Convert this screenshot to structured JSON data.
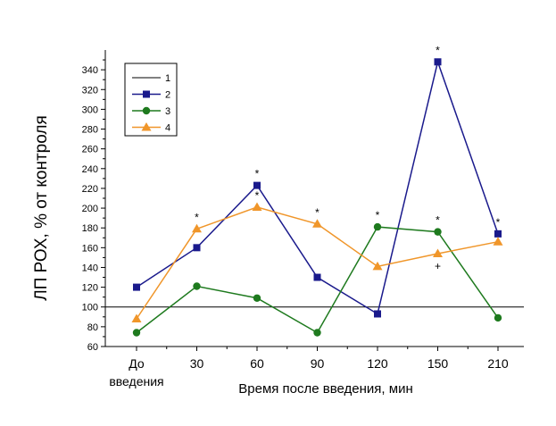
{
  "chart_data": {
    "type": "line",
    "ylabel": "ЛП РОХ, % от контроля",
    "xlabel": "Время после введения, мин",
    "categories": [
      "До\nвведения",
      "30",
      "60",
      "90",
      "120",
      "150",
      "210"
    ],
    "ylim": [
      60,
      360
    ],
    "yticks": [
      60,
      80,
      100,
      120,
      140,
      160,
      180,
      200,
      220,
      240,
      260,
      280,
      300,
      320,
      340
    ],
    "grid": false,
    "legend_position": "top-left",
    "reference_line": {
      "name": "1",
      "value": 100,
      "color": "#000000"
    },
    "series": [
      {
        "name": "2",
        "color": "#1a1a8c",
        "marker": "square",
        "values": [
          120,
          160,
          223,
          130,
          93,
          348,
          174
        ]
      },
      {
        "name": "3",
        "color": "#1e7a1e",
        "marker": "circle",
        "values": [
          74,
          121,
          109,
          74,
          181,
          176,
          89
        ]
      },
      {
        "name": "4",
        "color": "#f0962a",
        "marker": "triangle",
        "values": [
          88,
          179,
          201,
          184,
          141,
          154,
          166
        ]
      }
    ],
    "annotations": [
      {
        "category": 1,
        "y": 179,
        "text": "*"
      },
      {
        "category": 2,
        "y": 223,
        "text": "*"
      },
      {
        "category": 2,
        "y": 201,
        "text": "*"
      },
      {
        "category": 3,
        "y": 184,
        "text": "*"
      },
      {
        "category": 4,
        "y": 181,
        "text": "*"
      },
      {
        "category": 5,
        "y": 348,
        "text": "*"
      },
      {
        "category": 5,
        "y": 176,
        "text": "*"
      },
      {
        "category": 5,
        "y": 154,
        "text": "+",
        "below": true
      },
      {
        "category": 6,
        "y": 174,
        "text": "*"
      }
    ]
  }
}
